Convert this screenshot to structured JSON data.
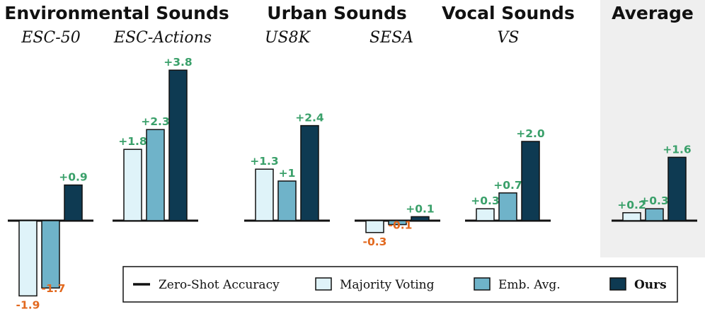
{
  "chart_data": {
    "type": "bar",
    "title": "",
    "ylabel": "",
    "groups": [
      {
        "title": "Environmental Sounds",
        "datasets": [
          "ESC-50",
          "ESC-Actions"
        ]
      },
      {
        "title": "Urban Sounds",
        "datasets": [
          "US8K",
          "SESA"
        ]
      },
      {
        "title": "Vocal Sounds",
        "datasets": [
          "VS"
        ]
      },
      {
        "title": "Average",
        "datasets": [
          ""
        ]
      }
    ],
    "categories": [
      "ESC-50",
      "ESC-Actions",
      "US8K",
      "SESA",
      "VS",
      "Average"
    ],
    "series": [
      {
        "name": "Majority Voting",
        "values": [
          -1.9,
          1.8,
          1.3,
          -0.3,
          0.3,
          0.2
        ],
        "labels": [
          "-1.9",
          "+1.8",
          "+1.3",
          "-0.3",
          "+0.3",
          "+0.2"
        ]
      },
      {
        "name": "Emb. Avg.",
        "values": [
          -1.7,
          2.3,
          1.0,
          -0.1,
          0.7,
          0.3
        ],
        "labels": [
          "-1.7",
          "+2.3",
          "+1",
          "-0.1",
          "+0.7",
          "+0.3"
        ]
      },
      {
        "name": "Ours",
        "values": [
          0.9,
          3.8,
          2.4,
          0.1,
          2.0,
          1.6
        ],
        "labels": [
          "+0.9",
          "+3.8",
          "+2.4",
          "+0.1",
          "+2.0",
          "+1.6"
        ]
      }
    ],
    "baseline": {
      "name": "Zero-Shot Accuracy",
      "value": 0
    },
    "legend": {
      "position": "bottom-right",
      "entries": [
        "Zero-Shot Accuracy",
        "Majority Voting",
        "Emb. Avg.",
        "Ours"
      ]
    },
    "grid": false
  },
  "colors": {
    "majority_voting": "#dff3f9",
    "emb_avg": "#6fb3c9",
    "ours": "#0e3a52",
    "positive_label": "#3aa06a",
    "negative_label": "#e2691f",
    "average_panel": "#efefef",
    "baseline": "#111111"
  }
}
